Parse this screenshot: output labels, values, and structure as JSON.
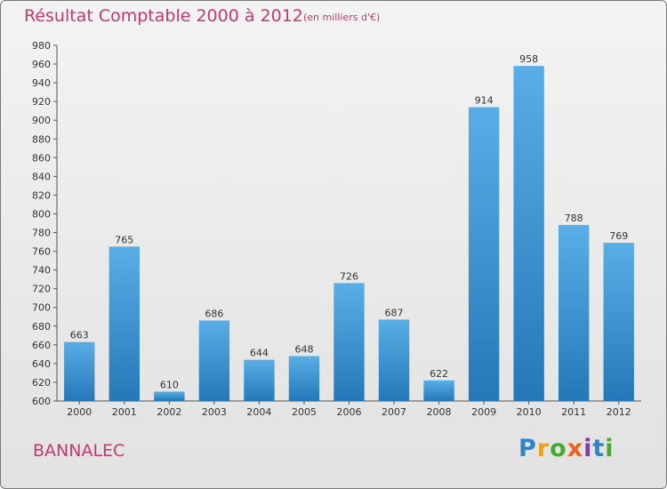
{
  "chart_data": {
    "type": "bar",
    "title": "Résultat Comptable 2000 à 2012",
    "subtitle": "(en milliers d'€)",
    "categories": [
      "2000",
      "2001",
      "2002",
      "2003",
      "2004",
      "2005",
      "2006",
      "2007",
      "2008",
      "2009",
      "2010",
      "2011",
      "2012"
    ],
    "values": [
      663,
      765,
      610,
      686,
      644,
      648,
      726,
      687,
      622,
      914,
      958,
      788,
      769
    ],
    "ylim": [
      600,
      980
    ],
    "yticks": [
      600,
      620,
      640,
      660,
      680,
      700,
      720,
      740,
      760,
      780,
      800,
      820,
      840,
      860,
      880,
      900,
      920,
      940,
      960,
      980
    ],
    "xlabel": "",
    "ylabel": "",
    "grid": false
  },
  "location": "BANNALEC",
  "logo": {
    "letters": [
      "P",
      "r",
      "o",
      "x",
      "i",
      "t",
      "i"
    ],
    "colors": [
      "#2e86c8",
      "#e8a21c",
      "#4aa832",
      "#e8641c",
      "#7a3fa0",
      "#2e86c8",
      "#4aa832"
    ]
  },
  "colors": {
    "bar_light": "#5aaee6",
    "bar_dark": "#2478b8",
    "accent": "#c23a6e"
  }
}
